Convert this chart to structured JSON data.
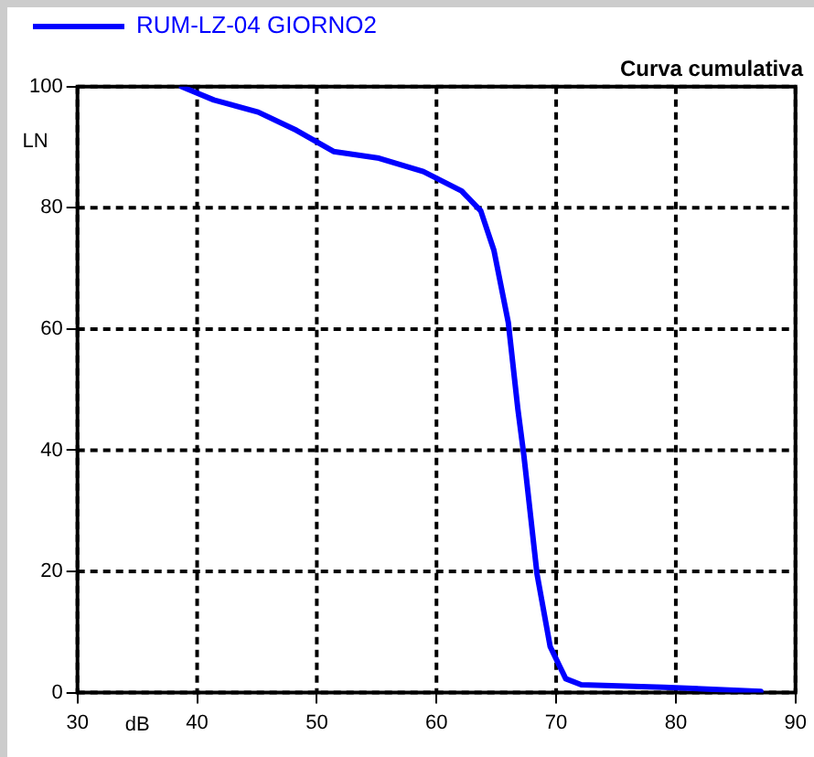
{
  "chart_data": {
    "type": "line",
    "title": "Curva cumulativa",
    "xlabel": "dB",
    "ylabel": "LN",
    "legend": "top left",
    "grid": true,
    "marker": "none",
    "line_style": "solid",
    "xlim": [
      30,
      90
    ],
    "xticks": [
      30,
      40,
      50,
      60,
      70,
      80,
      90
    ],
    "ylim": [
      0,
      100
    ],
    "yticks": [
      0,
      20,
      40,
      60,
      80,
      100
    ],
    "series": [
      {
        "name": "RUM-LZ-04 GIORNO2",
        "color": "#0000ff",
        "x": [
          38.7,
          41.4,
          45.1,
          48.3,
          51.4,
          55.2,
          58.9,
          62.1,
          63.7,
          64.8,
          66.0,
          66.8,
          67.3,
          68.4,
          69.5,
          70.8,
          72.1,
          79.0,
          87.1
        ],
        "values": [
          100,
          97.8,
          95.8,
          92.8,
          89.3,
          88.2,
          86.0,
          82.8,
          79.5,
          73.0,
          61.1,
          46.8,
          39.2,
          19.6,
          7.6,
          2.3,
          1.3,
          0.9,
          0.2
        ]
      }
    ]
  }
}
